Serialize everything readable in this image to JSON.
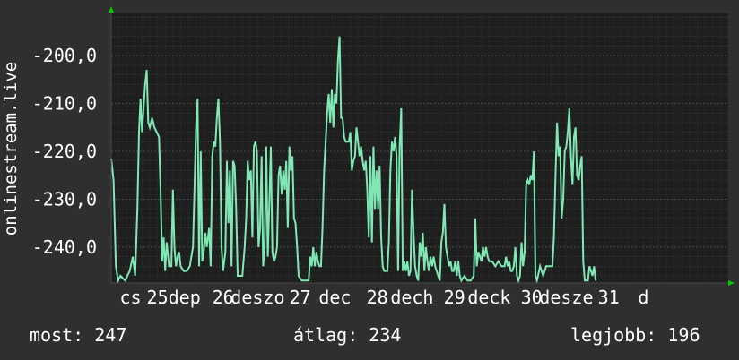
{
  "colors": {
    "background": "#2f2f2f",
    "plot_background": "#1f1f1f",
    "grid": "#4a4a4a",
    "line": "#7fe8b4",
    "text": "#ffffff",
    "axis_arrow": "#00cc00"
  },
  "stats": {
    "now": "most: 247",
    "avg": "átlag: 234",
    "best": "legjobb: 196"
  },
  "chart_data": {
    "type": "line",
    "title": "",
    "xlabel": "",
    "ylabel": "onlinestream.live",
    "ylim": [
      -247.5,
      -191
    ],
    "yticks": [
      -200,
      -210,
      -220,
      -230,
      -240
    ],
    "ytick_labels": [
      "-200,0",
      "-210,0",
      "-220,0",
      "-230,0",
      "-240,0"
    ],
    "xlim": [
      0,
      8
    ],
    "xtick_labels": [
      {
        "x": 0.25,
        "label": "cs"
      },
      {
        "x": 0.6,
        "label": "25"
      },
      {
        "x": 0.95,
        "label": "dep"
      },
      {
        "x": 1.45,
        "label": "26"
      },
      {
        "x": 1.9,
        "label": "deszo"
      },
      {
        "x": 2.45,
        "label": "27"
      },
      {
        "x": 2.9,
        "label": "dec"
      },
      {
        "x": 3.45,
        "label": "28"
      },
      {
        "x": 3.9,
        "label": "dech"
      },
      {
        "x": 4.45,
        "label": "29"
      },
      {
        "x": 4.9,
        "label": "deck"
      },
      {
        "x": 5.45,
        "label": "30"
      },
      {
        "x": 5.9,
        "label": "desze"
      },
      {
        "x": 6.45,
        "label": "31"
      },
      {
        "x": 6.9,
        "label": "d"
      }
    ],
    "series": [
      {
        "values": [
          [
            0.0,
            -221.5
          ],
          [
            0.03,
            -226
          ],
          [
            0.06,
            -244
          ],
          [
            0.09,
            -247
          ],
          [
            0.12,
            -246
          ],
          [
            0.18,
            -247
          ],
          [
            0.24,
            -245
          ],
          [
            0.28,
            -242
          ],
          [
            0.31,
            -246
          ],
          [
            0.34,
            -232
          ],
          [
            0.36,
            -216
          ],
          [
            0.38,
            -209
          ],
          [
            0.4,
            -216
          ],
          [
            0.42,
            -211
          ],
          [
            0.44,
            -206
          ],
          [
            0.46,
            -203
          ],
          [
            0.48,
            -214
          ],
          [
            0.5,
            -215
          ],
          [
            0.53,
            -213
          ],
          [
            0.56,
            -215
          ],
          [
            0.59,
            -216
          ],
          [
            0.62,
            -217
          ],
          [
            0.64,
            -228
          ],
          [
            0.66,
            -243
          ],
          [
            0.68,
            -238
          ],
          [
            0.7,
            -245
          ],
          [
            0.72,
            -239
          ],
          [
            0.75,
            -244
          ],
          [
            0.78,
            -244
          ],
          [
            0.8,
            -228
          ],
          [
            0.82,
            -240
          ],
          [
            0.84,
            -244
          ],
          [
            0.86,
            -242
          ],
          [
            0.88,
            -241
          ],
          [
            0.9,
            -244
          ],
          [
            0.94,
            -245
          ],
          [
            0.98,
            -245
          ],
          [
            1.02,
            -244
          ],
          [
            1.04,
            -242
          ],
          [
            1.06,
            -240
          ],
          [
            1.1,
            -215
          ],
          [
            1.12,
            -209
          ],
          [
            1.14,
            -244
          ],
          [
            1.16,
            -220
          ],
          [
            1.18,
            -243
          ],
          [
            1.2,
            -241
          ],
          [
            1.22,
            -237
          ],
          [
            1.24,
            -240
          ],
          [
            1.27,
            -236
          ],
          [
            1.29,
            -244
          ],
          [
            1.31,
            -221
          ],
          [
            1.33,
            -218
          ],
          [
            1.35,
            -219
          ],
          [
            1.37,
            -213
          ],
          [
            1.39,
            -209
          ],
          [
            1.41,
            -218
          ],
          [
            1.43,
            -240
          ],
          [
            1.45,
            -245
          ],
          [
            1.48,
            -241
          ],
          [
            1.5,
            -222
          ],
          [
            1.52,
            -235
          ],
          [
            1.54,
            -224
          ],
          [
            1.56,
            -244
          ],
          [
            1.58,
            -222
          ],
          [
            1.6,
            -223
          ],
          [
            1.62,
            -232
          ],
          [
            1.64,
            -246
          ],
          [
            1.66,
            -246
          ],
          [
            1.7,
            -246
          ],
          [
            1.73,
            -240
          ],
          [
            1.75,
            -234
          ],
          [
            1.77,
            -222
          ],
          [
            1.79,
            -226
          ],
          [
            1.81,
            -224
          ],
          [
            1.83,
            -238
          ],
          [
            1.85,
            -219
          ],
          [
            1.87,
            -218
          ],
          [
            1.89,
            -220
          ],
          [
            1.91,
            -240
          ],
          [
            1.93,
            -236
          ],
          [
            1.95,
            -221
          ],
          [
            1.97,
            -244
          ],
          [
            1.99,
            -240
          ],
          [
            2.01,
            -219
          ],
          [
            2.03,
            -242
          ],
          [
            2.05,
            -231
          ],
          [
            2.07,
            -219
          ],
          [
            2.09,
            -241
          ],
          [
            2.11,
            -243
          ],
          [
            2.13,
            -242
          ],
          [
            2.15,
            -240
          ],
          [
            2.17,
            -225
          ],
          [
            2.19,
            -223
          ],
          [
            2.21,
            -229
          ],
          [
            2.23,
            -224
          ],
          [
            2.25,
            -228
          ],
          [
            2.27,
            -222
          ],
          [
            2.29,
            -236
          ],
          [
            2.31,
            -219
          ],
          [
            2.33,
            -224
          ],
          [
            2.35,
            -221
          ],
          [
            2.37,
            -234
          ],
          [
            2.39,
            -235
          ],
          [
            2.41,
            -240
          ],
          [
            2.43,
            -246
          ],
          [
            2.47,
            -247
          ],
          [
            2.52,
            -247
          ],
          [
            2.56,
            -247
          ],
          [
            2.58,
            -242
          ],
          [
            2.6,
            -244
          ],
          [
            2.62,
            -240
          ],
          [
            2.64,
            -244
          ],
          [
            2.66,
            -241
          ],
          [
            2.68,
            -243
          ],
          [
            2.7,
            -244
          ],
          [
            2.72,
            -244
          ],
          [
            2.74,
            -236
          ],
          [
            2.76,
            -224
          ],
          [
            2.78,
            -218
          ],
          [
            2.8,
            -212
          ],
          [
            2.82,
            -208
          ],
          [
            2.84,
            -214
          ],
          [
            2.86,
            -207
          ],
          [
            2.88,
            -215
          ],
          [
            2.9,
            -208
          ],
          [
            2.92,
            -210
          ],
          [
            2.94,
            -201
          ],
          [
            2.96,
            -196
          ],
          [
            2.98,
            -213
          ],
          [
            3.0,
            -213
          ],
          [
            3.02,
            -217
          ],
          [
            3.04,
            -218
          ],
          [
            3.06,
            -218
          ],
          [
            3.08,
            -218
          ],
          [
            3.1,
            -216
          ],
          [
            3.12,
            -224
          ],
          [
            3.14,
            -222
          ],
          [
            3.16,
            -221
          ],
          [
            3.18,
            -215
          ],
          [
            3.2,
            -218
          ],
          [
            3.22,
            -221
          ],
          [
            3.24,
            -219
          ],
          [
            3.26,
            -222
          ],
          [
            3.28,
            -224
          ],
          [
            3.3,
            -222
          ],
          [
            3.32,
            -228
          ],
          [
            3.34,
            -238
          ],
          [
            3.36,
            -221
          ],
          [
            3.38,
            -239
          ],
          [
            3.4,
            -219
          ],
          [
            3.42,
            -232
          ],
          [
            3.44,
            -224
          ],
          [
            3.46,
            -232
          ],
          [
            3.48,
            -223
          ],
          [
            3.5,
            -238
          ],
          [
            3.52,
            -244
          ],
          [
            3.54,
            -245
          ],
          [
            3.58,
            -245
          ],
          [
            3.6,
            -239
          ],
          [
            3.62,
            -224
          ],
          [
            3.64,
            -218
          ],
          [
            3.66,
            -220
          ],
          [
            3.68,
            -217
          ],
          [
            3.7,
            -221
          ],
          [
            3.72,
            -245
          ],
          [
            3.74,
            -219
          ],
          [
            3.76,
            -211
          ],
          [
            3.78,
            -245
          ],
          [
            3.8,
            -243
          ],
          [
            3.82,
            -245
          ],
          [
            3.84,
            -243
          ],
          [
            3.86,
            -246
          ],
          [
            3.88,
            -245
          ],
          [
            3.9,
            -228
          ],
          [
            3.92,
            -237
          ],
          [
            3.94,
            -244
          ],
          [
            3.96,
            -246
          ],
          [
            3.98,
            -247
          ],
          [
            4.0,
            -239
          ],
          [
            4.02,
            -242
          ],
          [
            4.04,
            -237
          ],
          [
            4.06,
            -245
          ],
          [
            4.08,
            -240
          ],
          [
            4.1,
            -243
          ],
          [
            4.12,
            -245
          ],
          [
            4.14,
            -242
          ],
          [
            4.16,
            -244
          ],
          [
            4.18,
            -242
          ],
          [
            4.2,
            -244
          ],
          [
            4.22,
            -245
          ],
          [
            4.24,
            -246
          ],
          [
            4.26,
            -247
          ],
          [
            4.28,
            -239
          ],
          [
            4.3,
            -237
          ],
          [
            4.32,
            -231
          ],
          [
            4.34,
            -240
          ],
          [
            4.36,
            -242
          ],
          [
            4.38,
            -244
          ],
          [
            4.4,
            -243
          ],
          [
            4.42,
            -245
          ],
          [
            4.44,
            -245
          ],
          [
            4.46,
            -243
          ],
          [
            4.48,
            -246
          ],
          [
            4.5,
            -243
          ],
          [
            4.52,
            -246
          ],
          [
            4.54,
            -247
          ],
          [
            4.58,
            -246
          ],
          [
            4.62,
            -247
          ],
          [
            4.66,
            -247
          ],
          [
            4.7,
            -246
          ],
          [
            4.72,
            -234
          ],
          [
            4.74,
            -244
          ],
          [
            4.76,
            -241
          ],
          [
            4.78,
            -242
          ],
          [
            4.8,
            -243
          ],
          [
            4.82,
            -240
          ],
          [
            4.84,
            -242
          ],
          [
            4.86,
            -240
          ],
          [
            4.88,
            -242
          ],
          [
            4.9,
            -243
          ],
          [
            4.94,
            -243
          ],
          [
            4.98,
            -244
          ],
          [
            5.02,
            -243
          ],
          [
            5.06,
            -244
          ],
          [
            5.1,
            -244
          ],
          [
            5.12,
            -242
          ],
          [
            5.14,
            -244
          ],
          [
            5.16,
            -243
          ],
          [
            5.18,
            -245
          ],
          [
            5.2,
            -245
          ],
          [
            5.22,
            -244
          ],
          [
            5.24,
            -240
          ],
          [
            5.26,
            -246
          ],
          [
            5.28,
            -247
          ],
          [
            5.3,
            -246
          ],
          [
            5.32,
            -239
          ],
          [
            5.34,
            -244
          ],
          [
            5.36,
            -241
          ],
          [
            5.38,
            -227
          ],
          [
            5.4,
            -226
          ],
          [
            5.42,
            -227
          ],
          [
            5.44,
            -225
          ],
          [
            5.46,
            -226
          ],
          [
            5.48,
            -220
          ],
          [
            5.5,
            -246
          ],
          [
            5.52,
            -247
          ],
          [
            5.56,
            -244
          ],
          [
            5.6,
            -246
          ],
          [
            5.64,
            -244
          ],
          [
            5.68,
            -244
          ],
          [
            5.72,
            -244
          ],
          [
            5.74,
            -238
          ],
          [
            5.76,
            -225
          ],
          [
            5.78,
            -214
          ],
          [
            5.8,
            -221
          ],
          [
            5.82,
            -219
          ],
          [
            5.84,
            -234
          ],
          [
            5.86,
            -230
          ],
          [
            5.88,
            -220
          ],
          [
            5.9,
            -219
          ],
          [
            5.92,
            -216
          ],
          [
            5.94,
            -211
          ],
          [
            5.96,
            -221
          ],
          [
            5.98,
            -227
          ],
          [
            6.0,
            -217
          ],
          [
            6.02,
            -215
          ],
          [
            6.04,
            -225
          ],
          [
            6.06,
            -226
          ],
          [
            6.08,
            -223
          ],
          [
            6.1,
            -221
          ],
          [
            6.12,
            -243
          ],
          [
            6.14,
            -247
          ],
          [
            6.18,
            -247
          ],
          [
            6.2,
            -244
          ],
          [
            6.22,
            -245
          ],
          [
            6.24,
            -246
          ],
          [
            6.26,
            -244
          ],
          [
            6.28,
            -247
          ]
        ]
      }
    ]
  }
}
